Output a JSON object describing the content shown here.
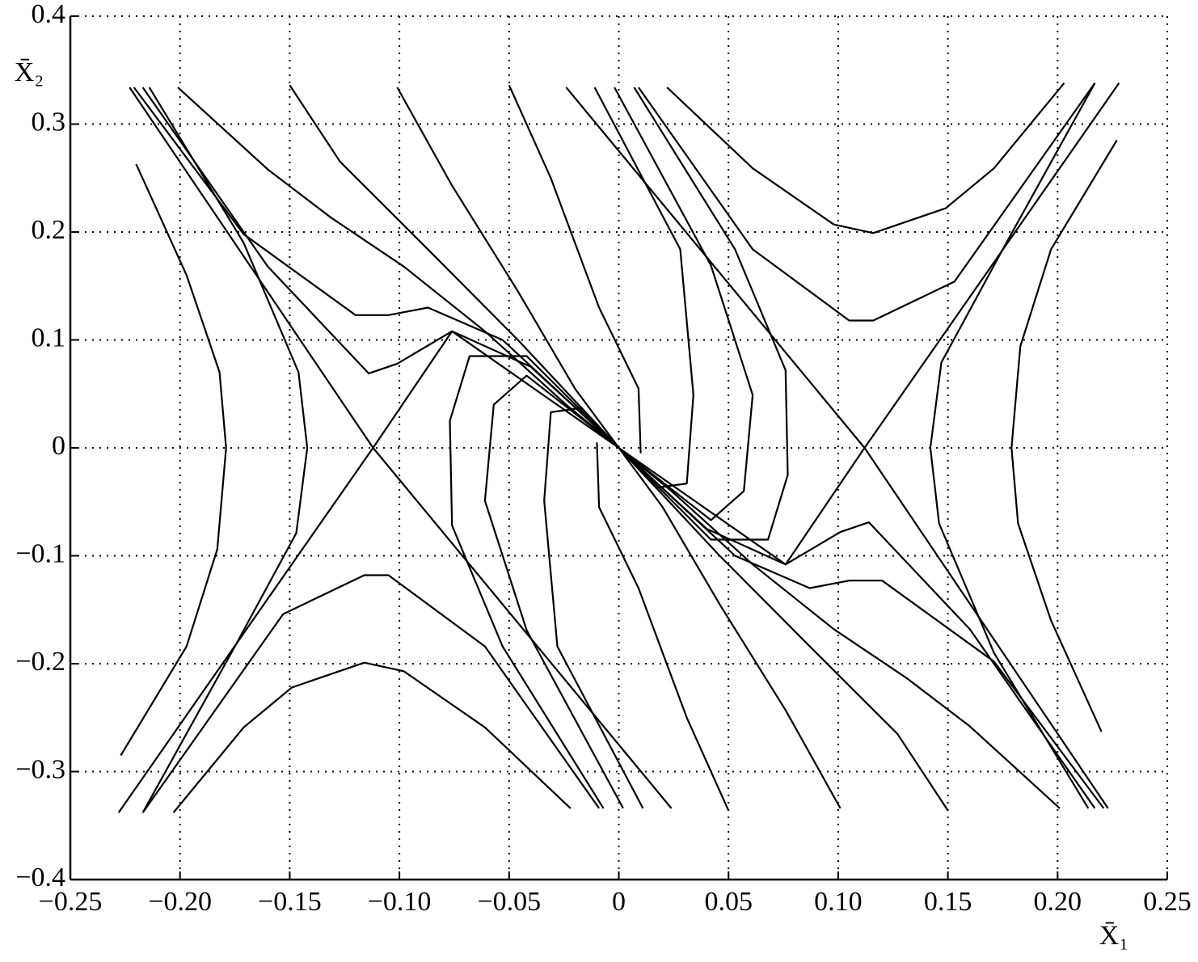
{
  "chart_data": {
    "type": "line",
    "xlabel": "X̄₁",
    "ylabel": "X̄₂",
    "color": "#000000",
    "grid": true,
    "xlim": [
      -0.25,
      0.25
    ],
    "ylim": [
      -0.4,
      0.4
    ],
    "xticks": [
      {
        "value": -0.25,
        "label": "−0.25"
      },
      {
        "value": -0.2,
        "label": "−0.20"
      },
      {
        "value": -0.15,
        "label": "−0.15"
      },
      {
        "value": -0.1,
        "label": "−0.10"
      },
      {
        "value": -0.05,
        "label": "−0.05"
      },
      0,
      0.05,
      {
        "value": 0.1,
        "label": "0.10"
      },
      0.15,
      {
        "value": 0.2,
        "label": "0.20"
      },
      0.25
    ],
    "yticks": [
      {
        "value": -0.4,
        "label": "−0.4"
      },
      {
        "value": -0.3,
        "label": "−0.3"
      },
      {
        "value": -0.2,
        "label": "−0.2"
      },
      {
        "value": -0.1,
        "label": "−0.1"
      },
      0,
      0.1,
      0.2,
      0.3,
      0.4
    ],
    "series": [
      {
        "x": [
          -0.22,
          -0.197,
          -0.182,
          -0.179,
          -0.183,
          -0.197,
          -0.227
        ],
        "values": [
          0.263,
          0.16,
          0.07,
          0,
          -0.094,
          -0.184,
          -0.285
        ]
      },
      {
        "x": [
          0.22,
          0.197,
          0.182,
          0.179,
          0.183,
          0.197,
          0.227
        ],
        "values": [
          -0.263,
          -0.16,
          -0.07,
          0,
          0.094,
          0.184,
          0.285
        ]
      },
      {
        "x": [
          -0.214,
          -0.171,
          -0.146,
          -0.142,
          -0.147,
          -0.175,
          -0.217
        ],
        "values": [
          0.334,
          0.19,
          0.07,
          0,
          -0.079,
          -0.184,
          -0.338
        ]
      },
      {
        "x": [
          0.214,
          0.171,
          0.146,
          0.142,
          0.147,
          0.175,
          0.217
        ],
        "values": [
          -0.334,
          -0.19,
          -0.07,
          0,
          0.079,
          0.184,
          0.338
        ]
      },
      {
        "x": [
          -0.223,
          -0.112,
          0.024
        ],
        "values": [
          0.334,
          0,
          -0.334
        ]
      },
      {
        "x": [
          0.223,
          0.112,
          -0.024
        ],
        "values": [
          -0.334,
          0,
          0.334
        ]
      },
      {
        "x": [
          -0.228,
          -0.112,
          -0.076,
          -0.04,
          0
        ],
        "values": [
          -0.338,
          0,
          0.108,
          0.075,
          0
        ]
      },
      {
        "x": [
          0.228,
          0.112,
          0.076,
          0.04,
          0
        ],
        "values": [
          0.338,
          0,
          -0.108,
          -0.075,
          0
        ]
      },
      {
        "x": [
          -0.201,
          -0.16,
          -0.131,
          -0.098,
          -0.061,
          -0.024,
          0
        ],
        "values": [
          0.334,
          0.258,
          0.213,
          0.168,
          0.108,
          0.04,
          0
        ]
      },
      {
        "x": [
          0.201,
          0.16,
          0.131,
          0.098,
          0.061,
          0.024,
          0
        ],
        "values": [
          -0.334,
          -0.258,
          -0.213,
          -0.168,
          -0.108,
          -0.04,
          0
        ]
      },
      {
        "x": [
          -0.15,
          -0.127,
          -0.09,
          -0.046,
          0
        ],
        "values": [
          0.336,
          0.265,
          0.19,
          0.1,
          0
        ]
      },
      {
        "x": [
          0.15,
          0.127,
          0.09,
          0.046,
          0
        ],
        "values": [
          -0.336,
          -0.265,
          -0.19,
          -0.1,
          0
        ]
      },
      {
        "x": [
          -0.101,
          -0.076,
          -0.046,
          -0.02,
          0
        ],
        "values": [
          0.334,
          0.243,
          0.145,
          0.055,
          0
        ]
      },
      {
        "x": [
          0.101,
          0.076,
          0.046,
          0.02,
          0
        ],
        "values": [
          -0.334,
          -0.243,
          -0.145,
          -0.055,
          0
        ]
      },
      {
        "x": [
          -0.05,
          -0.031,
          -0.009,
          0.009,
          0.01
        ],
        "values": [
          0.336,
          0.25,
          0.13,
          0.055,
          -0.005
        ]
      },
      {
        "x": [
          0.05,
          0.031,
          0.009,
          -0.009,
          -0.01
        ],
        "values": [
          -0.336,
          -0.25,
          -0.13,
          -0.055,
          0.005
        ]
      },
      {
        "x": [
          -0.221,
          -0.171,
          -0.12,
          -0.105,
          -0.087,
          -0.053,
          0
        ],
        "values": [
          0.334,
          0.198,
          0.123,
          0.123,
          0.13,
          0.1,
          0
        ]
      },
      {
        "x": [
          0.221,
          0.171,
          0.12,
          0.105,
          0.087,
          0.053,
          0
        ],
        "values": [
          -0.334,
          -0.198,
          -0.123,
          -0.123,
          -0.13,
          -0.1,
          0
        ]
      },
      {
        "x": [
          -0.217,
          -0.16,
          -0.114,
          -0.101,
          -0.076,
          0
        ],
        "values": [
          0.334,
          0.168,
          0.069,
          0.078,
          0.108,
          0
        ]
      },
      {
        "x": [
          0.217,
          0.16,
          0.114,
          0.101,
          0.076,
          0
        ],
        "values": [
          -0.334,
          -0.168,
          -0.069,
          -0.078,
          -0.108,
          0
        ]
      },
      {
        "x": [
          -0.007,
          -0.053,
          -0.076,
          -0.077,
          -0.068,
          -0.042,
          0
        ],
        "values": [
          -0.334,
          -0.184,
          -0.072,
          0.025,
          0.085,
          0.085,
          0
        ]
      },
      {
        "x": [
          0.007,
          0.053,
          0.076,
          0.077,
          0.068,
          0.042,
          0
        ],
        "values": [
          0.334,
          0.184,
          0.072,
          -0.025,
          -0.085,
          -0.085,
          0
        ]
      },
      {
        "x": [
          0.002,
          -0.042,
          -0.061,
          -0.057,
          -0.042,
          0
        ],
        "values": [
          -0.334,
          -0.169,
          -0.049,
          0.04,
          0.067,
          0
        ]
      },
      {
        "x": [
          -0.002,
          0.042,
          0.061,
          0.057,
          0.042,
          0
        ],
        "values": [
          0.334,
          0.169,
          0.049,
          -0.04,
          -0.067,
          0
        ]
      },
      {
        "x": [
          0.011,
          -0.028,
          -0.034,
          -0.031,
          -0.017,
          0
        ],
        "values": [
          -0.334,
          -0.184,
          -0.049,
          0.033,
          0.037,
          0
        ]
      },
      {
        "x": [
          -0.011,
          0.028,
          0.034,
          0.031,
          0.017,
          0
        ],
        "values": [
          0.334,
          0.184,
          0.049,
          -0.033,
          -0.037,
          0
        ]
      },
      {
        "x": [
          -0.203,
          -0.171,
          -0.149,
          -0.116,
          -0.098,
          -0.061,
          -0.022
        ],
        "values": [
          -0.338,
          -0.259,
          -0.222,
          -0.199,
          -0.207,
          -0.259,
          -0.334
        ]
      },
      {
        "x": [
          0.203,
          0.171,
          0.149,
          0.116,
          0.098,
          0.061,
          0.022
        ],
        "values": [
          0.338,
          0.259,
          0.222,
          0.199,
          0.207,
          0.259,
          0.334
        ]
      },
      {
        "x": [
          -0.217,
          -0.153,
          -0.116,
          -0.105,
          -0.061,
          -0.009
        ],
        "values": [
          -0.338,
          -0.154,
          -0.118,
          -0.118,
          -0.184,
          -0.334
        ]
      },
      {
        "x": [
          0.217,
          0.153,
          0.116,
          0.105,
          0.061,
          0.009
        ],
        "values": [
          0.338,
          0.154,
          0.118,
          0.118,
          0.184,
          0.334
        ]
      }
    ]
  }
}
